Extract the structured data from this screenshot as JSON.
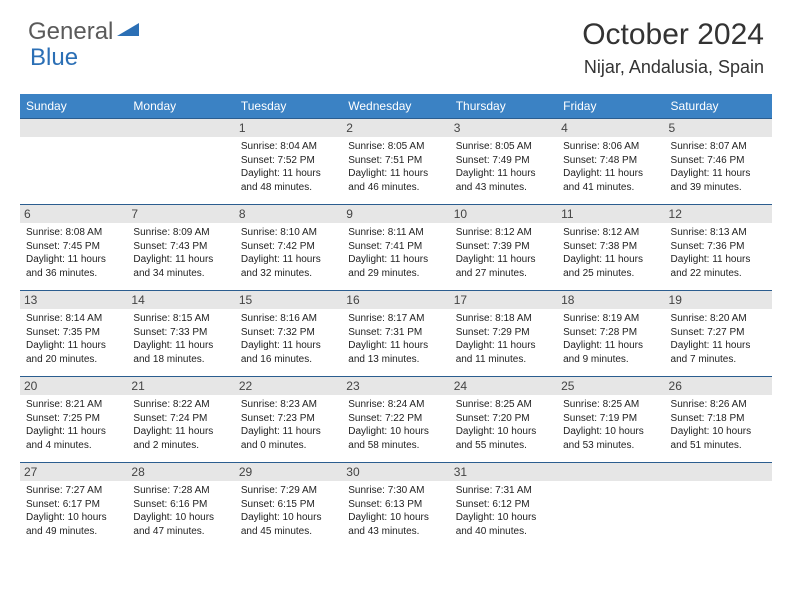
{
  "logo": {
    "general": "General",
    "blue": "Blue"
  },
  "title": "October 2024",
  "location": "Nijar, Andalusia, Spain",
  "colors": {
    "header_bg": "#3b82c4",
    "header_text": "#ffffff",
    "row_border": "#2b5d8f",
    "daynum_bg": "#e6e6e6",
    "logo_gray": "#5a5a5a",
    "logo_blue": "#2b6fb5"
  },
  "day_headers": [
    "Sunday",
    "Monday",
    "Tuesday",
    "Wednesday",
    "Thursday",
    "Friday",
    "Saturday"
  ],
  "weeks": [
    [
      null,
      null,
      {
        "n": "1",
        "sr": "8:04 AM",
        "ss": "7:52 PM",
        "dl": "11 hours and 48 minutes."
      },
      {
        "n": "2",
        "sr": "8:05 AM",
        "ss": "7:51 PM",
        "dl": "11 hours and 46 minutes."
      },
      {
        "n": "3",
        "sr": "8:05 AM",
        "ss": "7:49 PM",
        "dl": "11 hours and 43 minutes."
      },
      {
        "n": "4",
        "sr": "8:06 AM",
        "ss": "7:48 PM",
        "dl": "11 hours and 41 minutes."
      },
      {
        "n": "5",
        "sr": "8:07 AM",
        "ss": "7:46 PM",
        "dl": "11 hours and 39 minutes."
      }
    ],
    [
      {
        "n": "6",
        "sr": "8:08 AM",
        "ss": "7:45 PM",
        "dl": "11 hours and 36 minutes."
      },
      {
        "n": "7",
        "sr": "8:09 AM",
        "ss": "7:43 PM",
        "dl": "11 hours and 34 minutes."
      },
      {
        "n": "8",
        "sr": "8:10 AM",
        "ss": "7:42 PM",
        "dl": "11 hours and 32 minutes."
      },
      {
        "n": "9",
        "sr": "8:11 AM",
        "ss": "7:41 PM",
        "dl": "11 hours and 29 minutes."
      },
      {
        "n": "10",
        "sr": "8:12 AM",
        "ss": "7:39 PM",
        "dl": "11 hours and 27 minutes."
      },
      {
        "n": "11",
        "sr": "8:12 AM",
        "ss": "7:38 PM",
        "dl": "11 hours and 25 minutes."
      },
      {
        "n": "12",
        "sr": "8:13 AM",
        "ss": "7:36 PM",
        "dl": "11 hours and 22 minutes."
      }
    ],
    [
      {
        "n": "13",
        "sr": "8:14 AM",
        "ss": "7:35 PM",
        "dl": "11 hours and 20 minutes."
      },
      {
        "n": "14",
        "sr": "8:15 AM",
        "ss": "7:33 PM",
        "dl": "11 hours and 18 minutes."
      },
      {
        "n": "15",
        "sr": "8:16 AM",
        "ss": "7:32 PM",
        "dl": "11 hours and 16 minutes."
      },
      {
        "n": "16",
        "sr": "8:17 AM",
        "ss": "7:31 PM",
        "dl": "11 hours and 13 minutes."
      },
      {
        "n": "17",
        "sr": "8:18 AM",
        "ss": "7:29 PM",
        "dl": "11 hours and 11 minutes."
      },
      {
        "n": "18",
        "sr": "8:19 AM",
        "ss": "7:28 PM",
        "dl": "11 hours and 9 minutes."
      },
      {
        "n": "19",
        "sr": "8:20 AM",
        "ss": "7:27 PM",
        "dl": "11 hours and 7 minutes."
      }
    ],
    [
      {
        "n": "20",
        "sr": "8:21 AM",
        "ss": "7:25 PM",
        "dl": "11 hours and 4 minutes."
      },
      {
        "n": "21",
        "sr": "8:22 AM",
        "ss": "7:24 PM",
        "dl": "11 hours and 2 minutes."
      },
      {
        "n": "22",
        "sr": "8:23 AM",
        "ss": "7:23 PM",
        "dl": "11 hours and 0 minutes."
      },
      {
        "n": "23",
        "sr": "8:24 AM",
        "ss": "7:22 PM",
        "dl": "10 hours and 58 minutes."
      },
      {
        "n": "24",
        "sr": "8:25 AM",
        "ss": "7:20 PM",
        "dl": "10 hours and 55 minutes."
      },
      {
        "n": "25",
        "sr": "8:25 AM",
        "ss": "7:19 PM",
        "dl": "10 hours and 53 minutes."
      },
      {
        "n": "26",
        "sr": "8:26 AM",
        "ss": "7:18 PM",
        "dl": "10 hours and 51 minutes."
      }
    ],
    [
      {
        "n": "27",
        "sr": "7:27 AM",
        "ss": "6:17 PM",
        "dl": "10 hours and 49 minutes."
      },
      {
        "n": "28",
        "sr": "7:28 AM",
        "ss": "6:16 PM",
        "dl": "10 hours and 47 minutes."
      },
      {
        "n": "29",
        "sr": "7:29 AM",
        "ss": "6:15 PM",
        "dl": "10 hours and 45 minutes."
      },
      {
        "n": "30",
        "sr": "7:30 AM",
        "ss": "6:13 PM",
        "dl": "10 hours and 43 minutes."
      },
      {
        "n": "31",
        "sr": "7:31 AM",
        "ss": "6:12 PM",
        "dl": "10 hours and 40 minutes."
      },
      null,
      null
    ]
  ],
  "labels": {
    "sunrise": "Sunrise:",
    "sunset": "Sunset:",
    "daylight": "Daylight:"
  }
}
